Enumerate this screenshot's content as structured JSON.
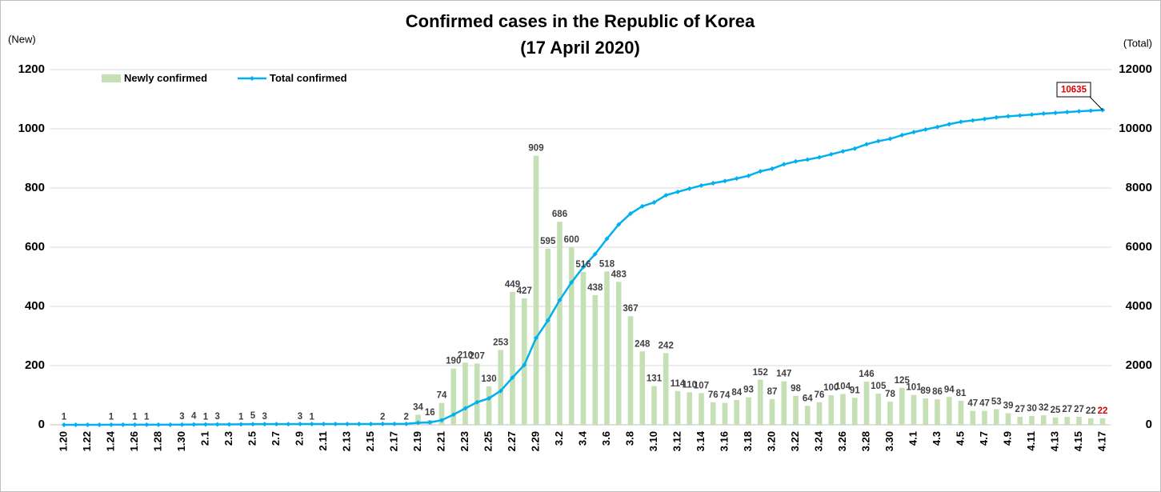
{
  "chart_data": {
    "type": "bar_line",
    "title": "Confirmed cases in the Republic of Korea",
    "subtitle": "(17 April 2020)",
    "ylabel": "(New)",
    "y2label": "(Total)",
    "categories": [
      "1.20",
      null,
      "1.22",
      null,
      "1.24",
      null,
      "1.26",
      null,
      "1.28",
      null,
      "1.30",
      null,
      "2.1",
      null,
      "2.3",
      null,
      "2.5",
      null,
      "2.7",
      null,
      "2.9",
      null,
      "2.11",
      null,
      "2.13",
      null,
      "2.15",
      null,
      "2.17",
      null,
      "2.19",
      null,
      "2.21",
      null,
      "2.23",
      null,
      "2.25",
      null,
      "2.27",
      null,
      "2.29",
      null,
      "3.2",
      null,
      "3.4",
      null,
      "3.6",
      null,
      "3.8",
      null,
      "3.10",
      null,
      "3.12",
      null,
      "3.14",
      null,
      "3.16",
      null,
      "3.18",
      null,
      "3.20",
      null,
      "3.22",
      null,
      "3.24",
      null,
      "3.26",
      null,
      "3.28",
      null,
      "3.30",
      null,
      "4.1",
      null,
      "4.3",
      null,
      "4.5",
      null,
      "4.7",
      null,
      "4.9",
      null,
      "4.11",
      null,
      "4.13",
      null,
      "4.15",
      null,
      "4.17"
    ],
    "series": [
      {
        "name": "Newly confirmed",
        "color": "#c5e0b4",
        "last_label_color": "#e00000",
        "values": [
          1,
          0,
          0,
          0,
          1,
          0,
          1,
          1,
          0,
          0,
          3,
          4,
          1,
          3,
          0,
          1,
          5,
          3,
          0,
          0,
          3,
          1,
          0,
          0,
          0,
          0,
          0,
          2,
          0,
          2,
          34,
          16,
          74,
          190,
          210,
          207,
          130,
          253,
          449,
          427,
          909,
          595,
          686,
          600,
          516,
          438,
          518,
          483,
          367,
          248,
          131,
          242,
          114,
          110,
          107,
          76,
          74,
          84,
          93,
          152,
          87,
          147,
          98,
          64,
          76,
          100,
          104,
          91,
          146,
          105,
          78,
          125,
          101,
          89,
          86,
          94,
          81,
          47,
          47,
          53,
          39,
          27,
          30,
          32,
          25,
          27,
          27,
          22,
          22
        ]
      },
      {
        "name": "Total confirmed",
        "color": "#00b0f0",
        "axis": "y2",
        "values": [
          1,
          1,
          1,
          1,
          2,
          2,
          3,
          4,
          4,
          4,
          7,
          11,
          12,
          15,
          15,
          16,
          21,
          24,
          24,
          24,
          27,
          28,
          28,
          28,
          28,
          28,
          28,
          30,
          30,
          32,
          66,
          82,
          156,
          346,
          556,
          763,
          893,
          1146,
          1595,
          2022,
          2931,
          3526,
          4212,
          4812,
          5328,
          5766,
          6284,
          6767,
          7134,
          7382,
          7513,
          7755,
          7869,
          7979,
          8086,
          8162,
          8236,
          8320,
          8413,
          8565,
          8652,
          8799,
          8897,
          8961,
          9037,
          9137,
          9241,
          9332,
          9478,
          9583,
          9661,
          9786,
          9887,
          9976,
          10062,
          10156,
          10237,
          10284,
          10331,
          10384,
          10423,
          10450,
          10480,
          10512,
          10537,
          10564,
          10591,
          10613,
          10635
        ]
      }
    ],
    "ylim": [
      0,
      1200
    ],
    "yticks": [
      0,
      200,
      400,
      600,
      800,
      1000,
      1200
    ],
    "y2lim": [
      0,
      12000
    ],
    "y2ticks": [
      0,
      2000,
      4000,
      6000,
      8000,
      10000,
      12000
    ],
    "grid": true
  }
}
